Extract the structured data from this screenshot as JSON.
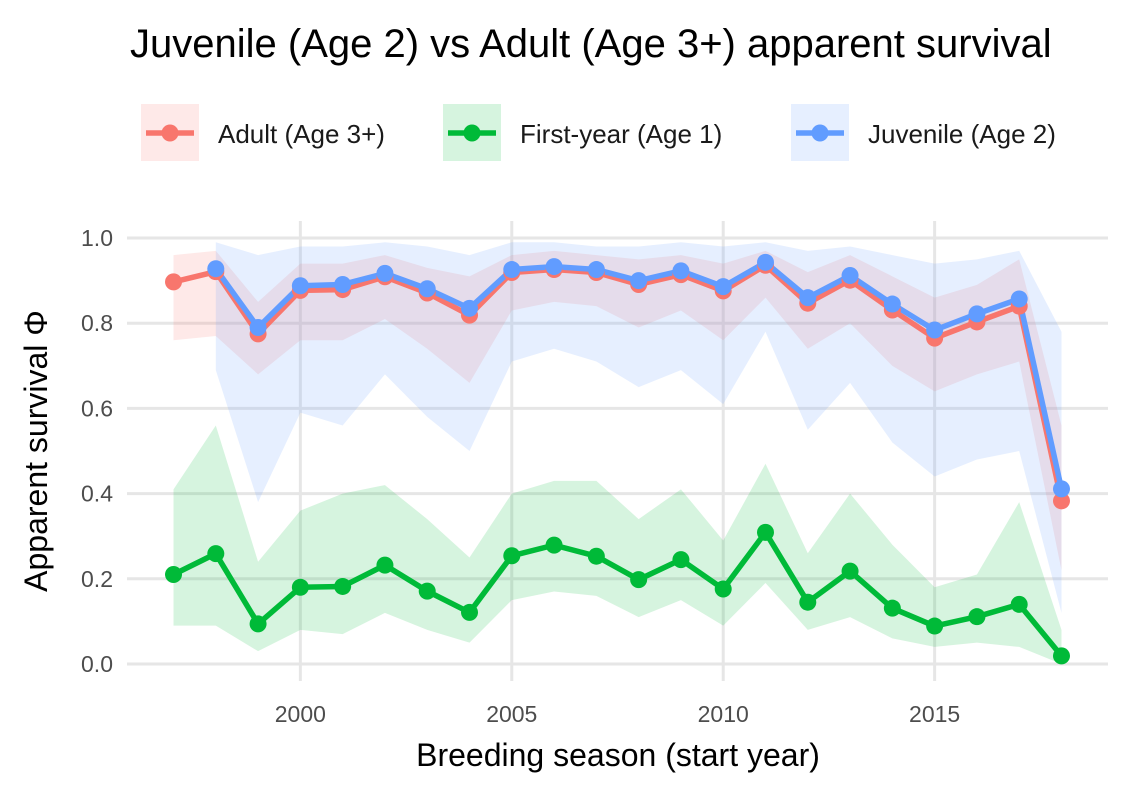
{
  "chart_data": {
    "type": "line",
    "title": "Juvenile (Age 2) vs Adult (Age 3+) apparent survival",
    "xlabel": "Breeding season (start year)",
    "ylabel": "Apparent survival Φ",
    "xlim": [
      1995.9,
      2019.1
    ],
    "ylim": [
      -0.04,
      1.04
    ],
    "x_ticks": [
      2000,
      2005,
      2010,
      2015
    ],
    "y_ticks": [
      0.0,
      0.2,
      0.4,
      0.6,
      0.8,
      1.0
    ],
    "x_tick_labels": [
      "2000",
      "2005",
      "2010",
      "2015"
    ],
    "y_tick_labels": [
      "0.0",
      "0.2",
      "0.4",
      "0.6",
      "0.8",
      "1.0"
    ],
    "grid": true,
    "legend_position": "top",
    "series": [
      {
        "name": "Adult (Age 3+)",
        "color": "#F8766D",
        "x": [
          1997,
          1998,
          1999,
          2000,
          2001,
          2002,
          2003,
          2004,
          2005,
          2006,
          2007,
          2008,
          2009,
          2010,
          2011,
          2012,
          2013,
          2014,
          2015,
          2016,
          2017,
          2018
        ],
        "values": [
          0.897,
          0.921,
          0.775,
          0.877,
          0.879,
          0.909,
          0.871,
          0.819,
          0.919,
          0.926,
          0.919,
          0.891,
          0.914,
          0.876,
          0.936,
          0.847,
          0.901,
          0.831,
          0.765,
          0.803,
          0.84,
          0.383
        ],
        "lower": [
          0.76,
          0.77,
          0.68,
          0.76,
          0.76,
          0.81,
          0.74,
          0.66,
          0.83,
          0.85,
          0.84,
          0.79,
          0.83,
          0.76,
          0.86,
          0.74,
          0.8,
          0.7,
          0.64,
          0.68,
          0.71,
          0.22
        ],
        "upper": [
          0.96,
          0.97,
          0.85,
          0.94,
          0.94,
          0.96,
          0.93,
          0.91,
          0.96,
          0.97,
          0.96,
          0.95,
          0.96,
          0.94,
          0.97,
          0.92,
          0.96,
          0.91,
          0.86,
          0.89,
          0.95,
          0.56
        ]
      },
      {
        "name": "First-year (Age 1)",
        "color": "#00BA38",
        "x": [
          1997,
          1998,
          1999,
          2000,
          2001,
          2002,
          2003,
          2004,
          2005,
          2006,
          2007,
          2008,
          2009,
          2010,
          2011,
          2012,
          2013,
          2014,
          2015,
          2016,
          2017,
          2018
        ],
        "values": [
          0.21,
          0.259,
          0.094,
          0.18,
          0.182,
          0.232,
          0.171,
          0.121,
          0.254,
          0.279,
          0.253,
          0.198,
          0.245,
          0.176,
          0.309,
          0.145,
          0.218,
          0.131,
          0.089,
          0.111,
          0.14,
          0.019
        ],
        "lower": [
          0.09,
          0.09,
          0.03,
          0.08,
          0.07,
          0.12,
          0.08,
          0.05,
          0.15,
          0.17,
          0.16,
          0.11,
          0.15,
          0.09,
          0.19,
          0.08,
          0.11,
          0.06,
          0.04,
          0.05,
          0.04,
          0.0
        ],
        "upper": [
          0.41,
          0.56,
          0.24,
          0.36,
          0.4,
          0.42,
          0.34,
          0.25,
          0.4,
          0.43,
          0.43,
          0.34,
          0.41,
          0.29,
          0.47,
          0.26,
          0.4,
          0.28,
          0.18,
          0.21,
          0.38,
          0.08
        ]
      },
      {
        "name": "Juvenile (Age 2)",
        "color": "#619CFF",
        "x": [
          1998,
          1999,
          2000,
          2001,
          2002,
          2003,
          2004,
          2005,
          2006,
          2007,
          2008,
          2009,
          2010,
          2011,
          2012,
          2013,
          2014,
          2015,
          2016,
          2017,
          2018
        ],
        "values": [
          0.928,
          0.79,
          0.888,
          0.891,
          0.917,
          0.881,
          0.835,
          0.926,
          0.933,
          0.926,
          0.9,
          0.923,
          0.886,
          0.943,
          0.86,
          0.912,
          0.845,
          0.784,
          0.822,
          0.857,
          0.411
        ],
        "lower": [
          0.69,
          0.38,
          0.59,
          0.56,
          0.68,
          0.58,
          0.5,
          0.71,
          0.74,
          0.71,
          0.65,
          0.69,
          0.61,
          0.78,
          0.55,
          0.66,
          0.52,
          0.44,
          0.48,
          0.5,
          0.12
        ],
        "upper": [
          0.99,
          0.96,
          0.98,
          0.98,
          0.99,
          0.98,
          0.96,
          0.99,
          0.99,
          0.98,
          0.98,
          0.99,
          0.98,
          0.99,
          0.97,
          0.98,
          0.96,
          0.94,
          0.95,
          0.97,
          0.78
        ]
      }
    ]
  }
}
